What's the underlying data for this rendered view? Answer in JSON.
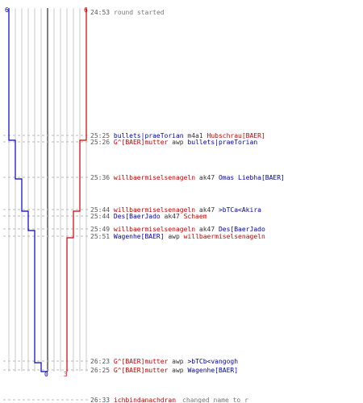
{
  "header": {
    "left_score": "6",
    "right_score": "6",
    "round_start": {
      "time": "24:53",
      "text": "round started"
    }
  },
  "final_scores": {
    "blue": "0",
    "red": "3"
  },
  "colors": {
    "blue_team": "#0000cc",
    "red_team": "#cc0000",
    "grid": "#c8c8c8",
    "dash": "#bbbbbb"
  },
  "events": [
    {
      "time": "25:25",
      "killer": "bullets|praeTorian",
      "killer_team": "blue",
      "weapon": "m4a1",
      "victim": "Hubschrau[BAER]",
      "victim_team": "red"
    },
    {
      "time": "25:26",
      "killer": "G^[BAER]mutter",
      "killer_team": "red",
      "weapon": "awp",
      "victim": "bullets|praeTorian",
      "victim_team": "blue"
    },
    {
      "time": "25:36",
      "killer": "willbaermiselsenageln",
      "killer_team": "red",
      "weapon": "ak47",
      "victim": "Omas Liebha[BAER]",
      "victim_team": "blue"
    },
    {
      "time": "25:44",
      "killer": "willbaermiselsenageln",
      "killer_team": "red",
      "weapon": "ak47",
      "victim": ">bTCa<Akira",
      "victim_team": "blue"
    },
    {
      "time": "25:44",
      "killer": "Des[BaerJado",
      "killer_team": "blue",
      "weapon": "ak47",
      "victim": "Schaem",
      "victim_team": "red"
    },
    {
      "time": "25:49",
      "killer": "willbaermiselsenageln",
      "killer_team": "red",
      "weapon": "ak47",
      "victim": "Des[BaerJado",
      "victim_team": "blue"
    },
    {
      "time": "25:51",
      "killer": "Wagenhe[BAER]",
      "killer_team": "blue",
      "weapon": "awp",
      "victim": "willbaermiselsenageln",
      "victim_team": "red"
    },
    {
      "time": "26:23",
      "killer": "G^[BAER]mutter",
      "killer_team": "red",
      "weapon": "awp",
      "victim": ">bTCb<vangogh",
      "victim_team": "blue"
    },
    {
      "time": "26:25",
      "killer": "G^[BAER]mutter",
      "killer_team": "red",
      "weapon": "awp",
      "victim": "Wagenhe[BAER]",
      "victim_team": "blue"
    }
  ],
  "footer": {
    "time": "26:33",
    "name": "ichbindanachdran",
    "text": "changed name to r"
  }
}
